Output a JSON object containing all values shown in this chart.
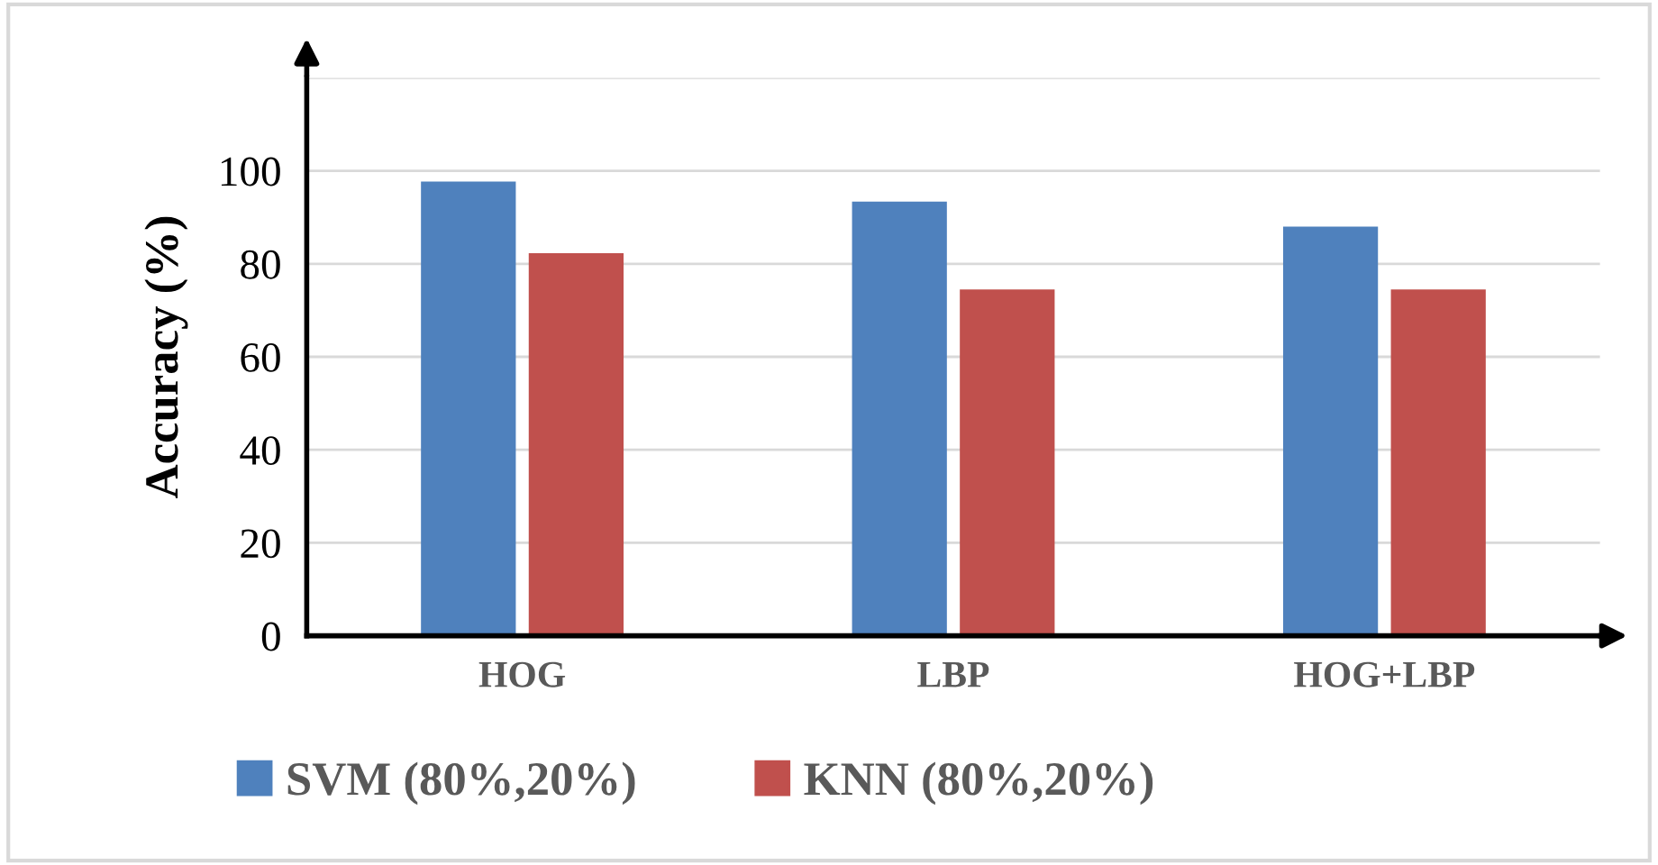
{
  "chart_data": {
    "type": "bar",
    "ylabel": "Accuracy (%)",
    "categories": [
      "HOG",
      "LBP",
      "HOG+LBP"
    ],
    "series": [
      {
        "name": "SVM (80%,20%)",
        "color": "#4f81bd",
        "values": [
          97.7,
          93.4,
          88
        ]
      },
      {
        "name": "KNN (80%,20%)",
        "color": "#c0504d",
        "values": [
          82.3,
          74.5,
          74.5
        ]
      }
    ],
    "ylim": [
      0,
      120
    ],
    "yticks": [
      0,
      20,
      40,
      60,
      80,
      100,
      {
        "value": 120,
        "label": null
      }
    ],
    "grid": "y",
    "legend": "bottom"
  }
}
